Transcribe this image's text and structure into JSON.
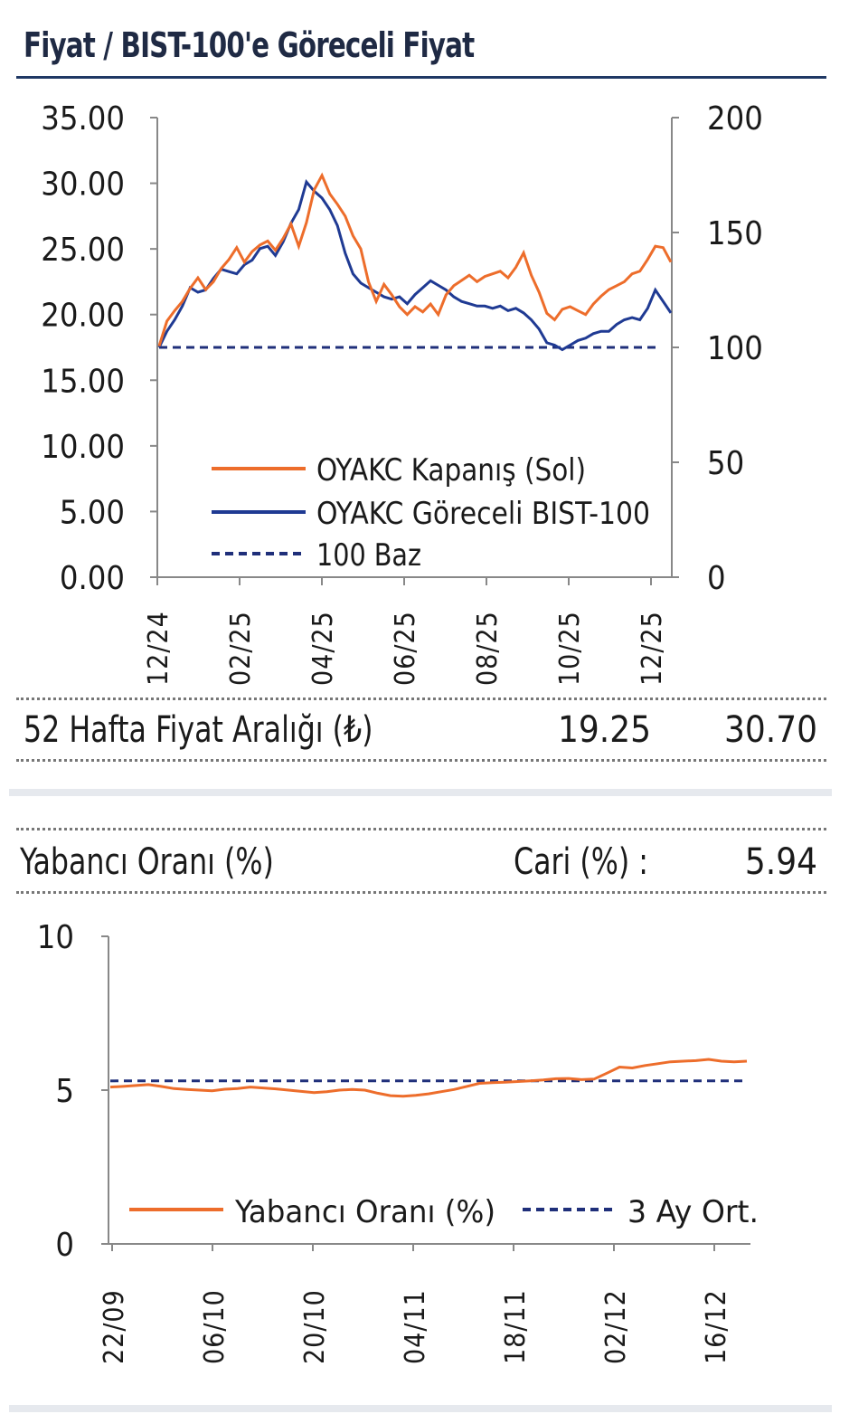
{
  "header": {
    "title": "Fiyat / BIST-100'e Göreceli Fiyat"
  },
  "price_range": {
    "label": "52 Hafta Fiyat Aralığı (₺)",
    "low": "19.25",
    "high": "30.70"
  },
  "foreign": {
    "label": "Yabancı Oranı (%)",
    "current_label": "Cari (%) :",
    "current_value": "5.94"
  },
  "colors": {
    "orange": "#ed6d2b",
    "navy": "#1f3a93",
    "dash": "#1f2f7a",
    "axis": "#888888"
  },
  "chart_data": [
    {
      "type": "line",
      "title": "",
      "y_left": {
        "ticks": [
          "35.00",
          "30.00",
          "25.00",
          "20.00",
          "15.00",
          "10.00",
          "5.00",
          "0.00"
        ],
        "range": [
          0,
          35
        ]
      },
      "y_right": {
        "ticks": [
          "200",
          "150",
          "100",
          "50",
          "0"
        ],
        "range": [
          0,
          200
        ]
      },
      "x_ticks": [
        "12/24",
        "02/25",
        "04/25",
        "06/25",
        "08/25",
        "10/25",
        "12/25"
      ],
      "legend_position": "bottom-center",
      "series": [
        {
          "name": "OYAKC Kapanış (Sol)",
          "axis": "left",
          "color": "#ed6d2b",
          "values": [
            17.6,
            19.5,
            20.3,
            21.0,
            22.0,
            22.8,
            21.9,
            22.5,
            23.5,
            24.2,
            25.1,
            24.0,
            24.8,
            25.3,
            25.6,
            24.9,
            25.8,
            26.9,
            25.2,
            27.0,
            29.5,
            30.6,
            29.2,
            28.4,
            27.5,
            26.0,
            25.0,
            22.5,
            21.0,
            22.3,
            21.5,
            20.6,
            20.0,
            20.6,
            20.2,
            20.8,
            20.0,
            21.5,
            22.2,
            22.6,
            23.0,
            22.5,
            22.9,
            23.1,
            23.3,
            22.8,
            23.6,
            24.7,
            23.0,
            21.7,
            20.1,
            19.6,
            20.4,
            20.6,
            20.3,
            20.0,
            20.8,
            21.4,
            21.9,
            22.2,
            22.5,
            23.1,
            23.3,
            24.2,
            25.2,
            25.1,
            24.0
          ]
        },
        {
          "name": "OYAKC Göreceli BIST-100",
          "axis": "right",
          "color": "#1f3a93",
          "values": [
            100,
            107,
            112,
            118,
            126,
            124,
            125,
            130,
            134,
            133,
            132,
            136,
            138,
            143,
            144,
            140,
            146,
            154,
            160,
            172,
            168,
            165,
            160,
            153,
            141,
            132,
            128,
            126,
            124,
            122,
            121,
            122,
            119,
            123,
            126,
            129,
            127,
            125,
            122,
            120,
            119,
            118,
            118,
            117,
            118,
            116,
            117,
            115,
            112,
            108,
            102,
            101,
            99,
            101,
            103,
            104,
            106,
            107,
            107,
            110,
            112,
            113,
            112,
            117,
            125,
            120,
            115
          ]
        },
        {
          "name": "100 Baz",
          "axis": "right",
          "color": "#1f2f7a",
          "style": "dashed",
          "values": [
            100,
            100
          ]
        }
      ]
    },
    {
      "type": "line",
      "title": "",
      "y_ticks": [
        "10",
        "5",
        "0"
      ],
      "ylim": [
        0,
        10
      ],
      "x_ticks": [
        "22/09",
        "06/10",
        "20/10",
        "04/11",
        "18/11",
        "02/12",
        "16/12"
      ],
      "legend_position": "bottom",
      "series": [
        {
          "name": "Yabancı Oranı (%)",
          "color": "#ed6d2b",
          "values": [
            5.1,
            5.12,
            5.15,
            5.18,
            5.12,
            5.05,
            5.02,
            5.0,
            4.98,
            5.03,
            5.05,
            5.1,
            5.07,
            5.04,
            5.0,
            4.96,
            4.92,
            4.95,
            5.0,
            5.02,
            5.0,
            4.9,
            4.82,
            4.8,
            4.83,
            4.88,
            4.95,
            5.02,
            5.12,
            5.22,
            5.24,
            5.26,
            5.28,
            5.3,
            5.33,
            5.37,
            5.38,
            5.34,
            5.36,
            5.55,
            5.75,
            5.72,
            5.8,
            5.86,
            5.92,
            5.94,
            5.96,
            6.0,
            5.94,
            5.92,
            5.94
          ]
        },
        {
          "name": "3 Ay Ort.",
          "color": "#1f2f7a",
          "style": "dashed",
          "values": [
            5.3,
            5.3
          ]
        }
      ]
    }
  ]
}
